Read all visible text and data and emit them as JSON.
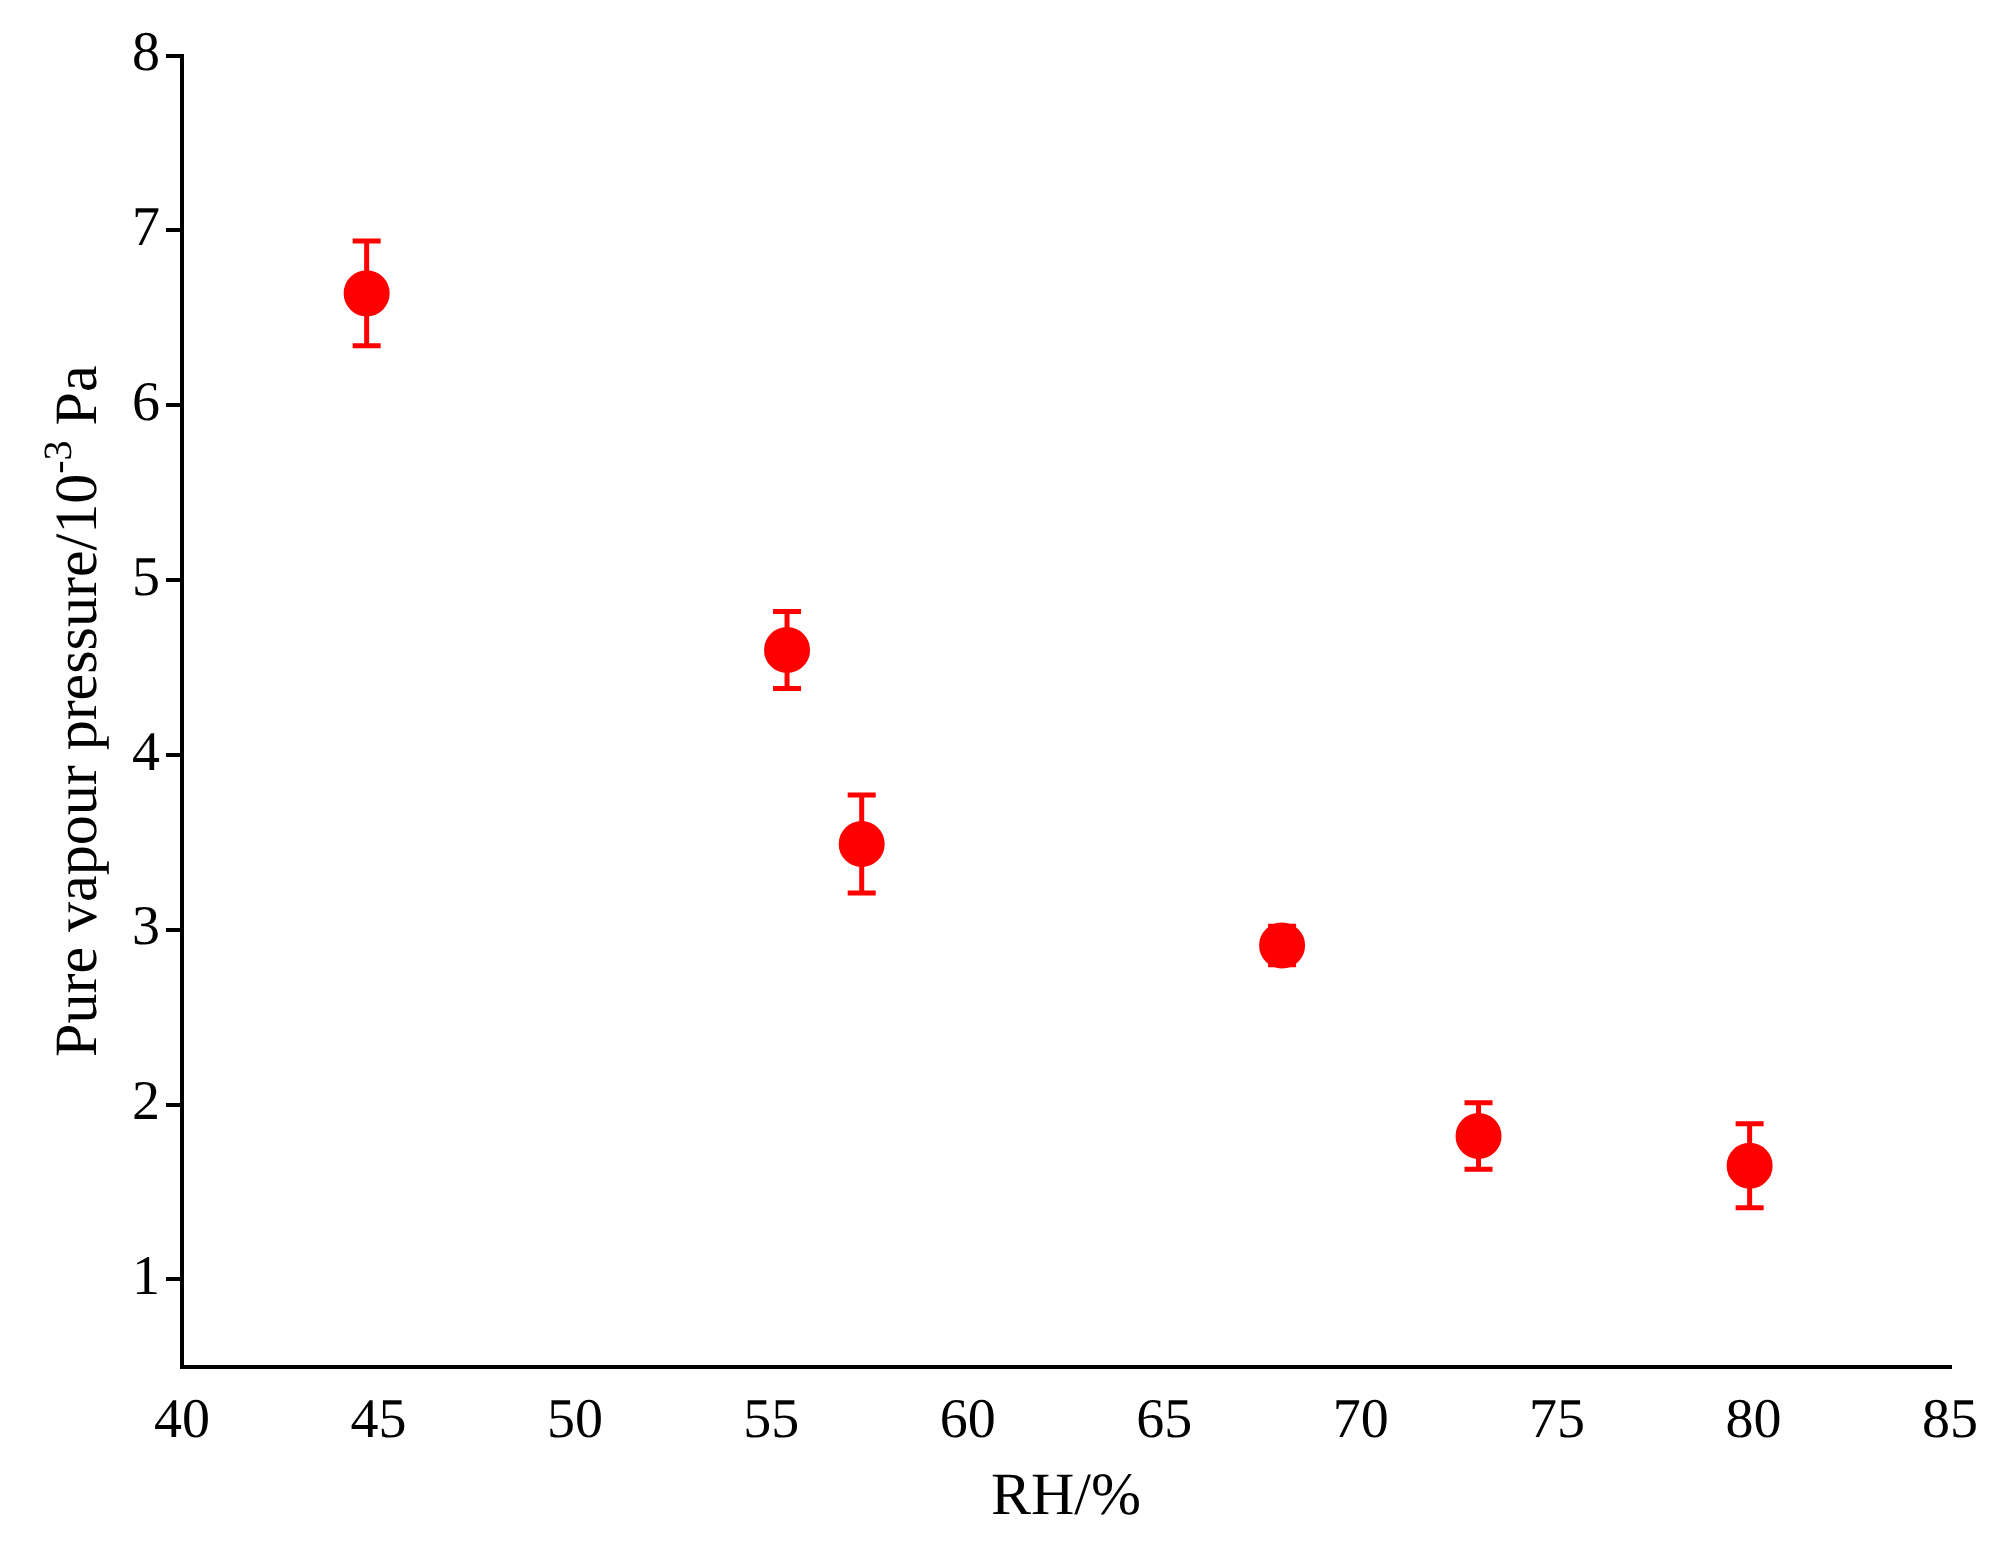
{
  "chart_data": {
    "type": "scatter",
    "xlabel": "RH/%",
    "ylabel": "Pure vapour pressure/10$^{-3}$ Pa",
    "x": [
      44.7,
      55.4,
      57.3,
      68.0,
      73.0,
      79.9
    ],
    "values": [
      6.64,
      4.6,
      3.49,
      2.91,
      1.82,
      1.65
    ],
    "errors": [
      0.3,
      0.22,
      0.28,
      0.11,
      0.19,
      0.24
    ],
    "color": "#ff0000",
    "marker": "circle",
    "grid": false,
    "legend": false,
    "xlim": [
      40,
      85
    ],
    "xticks": [
      40,
      45,
      50,
      55,
      60,
      65,
      70,
      75,
      80,
      85
    ],
    "ylim": [
      0.5,
      8
    ],
    "yticks": [
      1,
      2,
      3,
      4,
      5,
      6,
      7,
      8
    ]
  }
}
